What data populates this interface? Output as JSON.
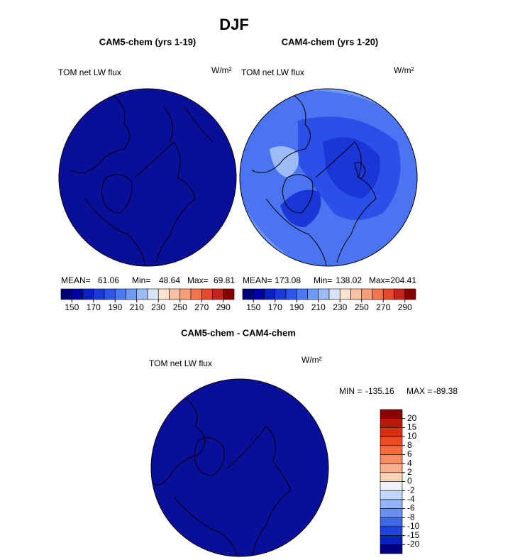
{
  "title": "DJF",
  "panels": [
    {
      "title": "CAM5-chem (yrs 1-19)",
      "field": "TOM net LW flux",
      "units": "W/m²",
      "fill": "#0a0f9a",
      "stats": {
        "mean_label": "MEAN=",
        "mean": 61.06,
        "min_label": "Min=",
        "min": 48.64,
        "max_label": "Max=",
        "max": 69.81
      },
      "colorbar": {
        "levels": [
          150,
          170,
          190,
          210,
          230,
          250,
          270,
          290
        ],
        "colors": [
          "#00007a",
          "#0000a8",
          "#0a1fc4",
          "#1c3ad8",
          "#2d55ea",
          "#4a78f2",
          "#6e9af5",
          "#9dbcf7",
          "#d6e4fa",
          "#fde2d2",
          "#fbc1a5",
          "#f79d78",
          "#f1744d",
          "#e24a2a",
          "#c2261a",
          "#880000"
        ]
      }
    },
    {
      "title": "CAM4-chem (yrs 1-20)",
      "field": "TOM net LW flux",
      "units": "W/m²",
      "fill": "#4a74f0",
      "stats": {
        "mean_label": "MEAN=",
        "mean": 173.08,
        "min_label": "Min=",
        "min": 138.02,
        "max_label": "Max=",
        "max": 204.41
      },
      "colorbar": {
        "levels": [
          150,
          170,
          190,
          210,
          230,
          250,
          270,
          290
        ],
        "colors": [
          "#00007a",
          "#0000a8",
          "#0a1fc4",
          "#1c3ad8",
          "#2d55ea",
          "#4a78f2",
          "#6e9af5",
          "#9dbcf7",
          "#d6e4fa",
          "#fde2d2",
          "#fbc1a5",
          "#f79d78",
          "#f1744d",
          "#e24a2a",
          "#c2261a",
          "#880000"
        ]
      }
    }
  ],
  "difference": {
    "title": "CAM5-chem - CAM4-chem",
    "field": "TOM net LW flux",
    "units": "W/m²",
    "fill": "#0a0f9a",
    "stats": {
      "min_label": "MIN =",
      "min": -135.16,
      "max_label": "MAX =",
      "max": -89.38
    },
    "colorbar": {
      "levels": [
        20,
        15,
        10,
        8,
        6,
        4,
        2,
        0,
        -2,
        -4,
        -6,
        -8,
        -10,
        -15,
        -20
      ],
      "colors": [
        "#8b0000",
        "#b81a0a",
        "#d82e12",
        "#ee4a20",
        "#f56a3c",
        "#f78d62",
        "#f9ad8a",
        "#fcd1b8",
        "#eef2fb",
        "#c4d6f8",
        "#96b4f4",
        "#6a90ef",
        "#3f68e8",
        "#1f44dc",
        "#0a22c0",
        "#000080"
      ]
    }
  }
}
